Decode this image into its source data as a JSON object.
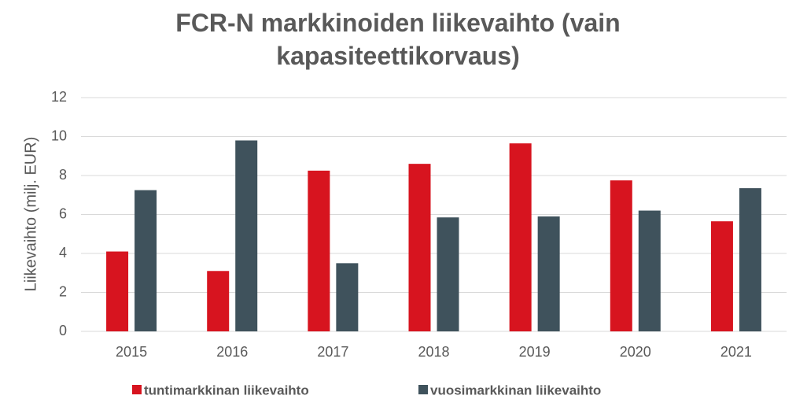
{
  "chart_data": {
    "type": "bar",
    "title": "FCR-N markkinoiden liikevaihto (vain kapasiteettikorvaus)",
    "y_label": "Liikevaihto (milj. EUR)",
    "categories": [
      "2015",
      "2016",
      "2017",
      "2018",
      "2019",
      "2020",
      "2021"
    ],
    "series": [
      {
        "name": "tuntimarkkinan liikevaihto",
        "color": "#d7141f",
        "values": [
          4.1,
          3.1,
          8.25,
          8.6,
          9.65,
          7.75,
          5.65
        ]
      },
      {
        "name": "vuosimarkkinan liikevaihto",
        "color": "#3f525c",
        "values": [
          7.25,
          9.8,
          3.5,
          5.85,
          5.9,
          6.2,
          7.35
        ]
      }
    ],
    "ylim": [
      0,
      12
    ],
    "yticks": [
      0,
      2,
      4,
      6,
      8,
      10,
      12
    ],
    "grid": true,
    "legend": "bottom"
  }
}
